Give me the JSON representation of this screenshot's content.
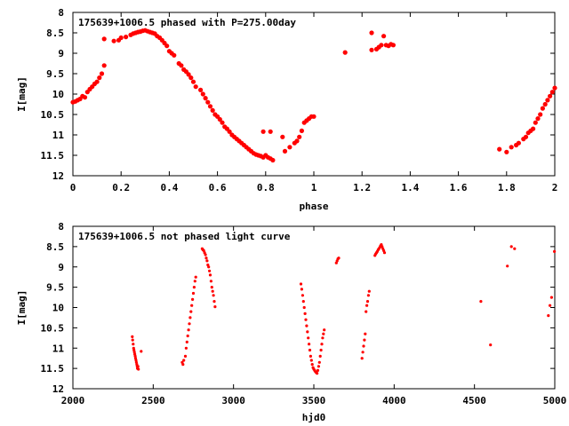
{
  "chart_data": [
    {
      "type": "scatter",
      "title": "175639+1006.5 phased with P=275.00day",
      "xlabel": "phase",
      "ylabel": "I[mag]",
      "xlim": [
        0,
        2
      ],
      "ylim": [
        12,
        8
      ],
      "y_inverted": true,
      "grid": false,
      "color": "#ff0000",
      "xticks": [
        "0",
        "0.2",
        "0.4",
        "0.6",
        "0.8",
        "1",
        "1.2",
        "1.4",
        "1.6",
        "1.8",
        "2"
      ],
      "yticks": [
        "8",
        "8.5",
        "9",
        "9.5",
        "10",
        "10.5",
        "11",
        "11.5",
        "12"
      ],
      "series": [
        {
          "points": [
            [
              0.0,
              10.2
            ],
            [
              0.01,
              10.18
            ],
            [
              0.02,
              10.15
            ],
            [
              0.03,
              10.12
            ],
            [
              0.04,
              10.05
            ],
            [
              0.05,
              10.08
            ],
            [
              0.06,
              9.95
            ],
            [
              0.07,
              9.88
            ],
            [
              0.08,
              9.82
            ],
            [
              0.09,
              9.75
            ],
            [
              0.1,
              9.7
            ],
            [
              0.11,
              9.6
            ],
            [
              0.12,
              9.5
            ],
            [
              0.13,
              9.3
            ],
            [
              0.13,
              8.65
            ],
            [
              0.17,
              8.7
            ],
            [
              0.19,
              8.68
            ],
            [
              0.2,
              8.62
            ],
            [
              0.22,
              8.6
            ],
            [
              0.24,
              8.55
            ],
            [
              0.25,
              8.52
            ],
            [
              0.26,
              8.5
            ],
            [
              0.27,
              8.48
            ],
            [
              0.28,
              8.47
            ],
            [
              0.29,
              8.45
            ],
            [
              0.3,
              8.44
            ],
            [
              0.31,
              8.46
            ],
            [
              0.32,
              8.48
            ],
            [
              0.33,
              8.5
            ],
            [
              0.34,
              8.52
            ],
            [
              0.35,
              8.58
            ],
            [
              0.36,
              8.62
            ],
            [
              0.37,
              8.68
            ],
            [
              0.38,
              8.75
            ],
            [
              0.39,
              8.82
            ],
            [
              0.4,
              8.95
            ],
            [
              0.41,
              9.0
            ],
            [
              0.42,
              9.05
            ],
            [
              0.44,
              9.25
            ],
            [
              0.45,
              9.3
            ],
            [
              0.46,
              9.4
            ],
            [
              0.47,
              9.45
            ],
            [
              0.48,
              9.52
            ],
            [
              0.49,
              9.6
            ],
            [
              0.5,
              9.7
            ],
            [
              0.51,
              9.82
            ],
            [
              0.53,
              9.9
            ],
            [
              0.54,
              10.0
            ],
            [
              0.55,
              10.1
            ],
            [
              0.56,
              10.2
            ],
            [
              0.57,
              10.3
            ],
            [
              0.58,
              10.4
            ],
            [
              0.59,
              10.5
            ],
            [
              0.6,
              10.55
            ],
            [
              0.61,
              10.62
            ],
            [
              0.62,
              10.7
            ],
            [
              0.63,
              10.8
            ],
            [
              0.64,
              10.85
            ],
            [
              0.65,
              10.92
            ],
            [
              0.66,
              11.0
            ],
            [
              0.67,
              11.05
            ],
            [
              0.68,
              11.1
            ],
            [
              0.69,
              11.15
            ],
            [
              0.7,
              11.2
            ],
            [
              0.71,
              11.25
            ],
            [
              0.72,
              11.3
            ],
            [
              0.73,
              11.35
            ],
            [
              0.74,
              11.4
            ],
            [
              0.75,
              11.45
            ],
            [
              0.76,
              11.48
            ],
            [
              0.77,
              11.5
            ],
            [
              0.78,
              11.52
            ],
            [
              0.79,
              11.55
            ],
            [
              0.8,
              11.5
            ],
            [
              0.81,
              11.55
            ],
            [
              0.82,
              11.58
            ],
            [
              0.83,
              11.62
            ],
            [
              0.79,
              10.92
            ],
            [
              0.82,
              10.92
            ],
            [
              0.87,
              11.05
            ],
            [
              0.88,
              11.4
            ],
            [
              0.9,
              11.3
            ],
            [
              0.92,
              11.2
            ],
            [
              0.93,
              11.15
            ],
            [
              0.94,
              11.05
            ],
            [
              0.95,
              10.9
            ],
            [
              0.96,
              10.7
            ],
            [
              0.97,
              10.65
            ],
            [
              0.98,
              10.6
            ],
            [
              0.99,
              10.55
            ],
            [
              1.0,
              10.55
            ],
            [
              1.13,
              8.98
            ],
            [
              1.24,
              8.5
            ],
            [
              1.24,
              8.92
            ],
            [
              1.26,
              8.9
            ],
            [
              1.27,
              8.85
            ],
            [
              1.28,
              8.8
            ],
            [
              1.29,
              8.58
            ],
            [
              1.3,
              8.8
            ],
            [
              1.31,
              8.82
            ],
            [
              1.32,
              8.78
            ],
            [
              1.33,
              8.8
            ],
            [
              1.77,
              11.35
            ],
            [
              1.8,
              11.42
            ],
            [
              1.82,
              11.3
            ],
            [
              1.84,
              11.25
            ],
            [
              1.85,
              11.2
            ],
            [
              1.87,
              11.1
            ],
            [
              1.88,
              11.05
            ],
            [
              1.89,
              10.95
            ],
            [
              1.9,
              10.9
            ],
            [
              1.91,
              10.85
            ],
            [
              1.92,
              10.7
            ],
            [
              1.93,
              10.6
            ],
            [
              1.94,
              10.5
            ],
            [
              1.95,
              10.35
            ],
            [
              1.96,
              10.25
            ],
            [
              1.97,
              10.15
            ],
            [
              1.98,
              10.05
            ],
            [
              1.99,
              9.95
            ],
            [
              2.0,
              9.85
            ]
          ]
        }
      ]
    },
    {
      "type": "scatter",
      "title": "175639+1006.5 not phased light curve",
      "xlabel": "hjd0",
      "ylabel": "I[mag]",
      "xlim": [
        2000,
        5000
      ],
      "ylim": [
        12,
        8
      ],
      "y_inverted": true,
      "grid": false,
      "color": "#ff0000",
      "xticks": [
        "2000",
        "2500",
        "3000",
        "3500",
        "4000",
        "4500",
        "5000"
      ],
      "yticks": [
        "8",
        "8.5",
        "9",
        "9.5",
        "10",
        "10.5",
        "11",
        "11.5",
        "12"
      ],
      "series": [
        {
          "points": [
            [
              2370,
              10.72
            ],
            [
              2372,
              10.8
            ],
            [
              2375,
              10.9
            ],
            [
              2378,
              11.0
            ],
            [
              2380,
              11.05
            ],
            [
              2383,
              11.1
            ],
            [
              2385,
              11.15
            ],
            [
              2388,
              11.2
            ],
            [
              2390,
              11.25
            ],
            [
              2393,
              11.3
            ],
            [
              2395,
              11.35
            ],
            [
              2398,
              11.4
            ],
            [
              2400,
              11.45
            ],
            [
              2402,
              11.5
            ],
            [
              2405,
              11.45
            ],
            [
              2408,
              11.52
            ],
            [
              2425,
              11.08
            ],
            [
              2680,
              11.35
            ],
            [
              2685,
              11.4
            ],
            [
              2690,
              11.3
            ],
            [
              2700,
              11.2
            ],
            [
              2705,
              11.0
            ],
            [
              2710,
              10.85
            ],
            [
              2715,
              10.7
            ],
            [
              2720,
              10.55
            ],
            [
              2725,
              10.4
            ],
            [
              2730,
              10.25
            ],
            [
              2735,
              10.1
            ],
            [
              2740,
              9.95
            ],
            [
              2745,
              9.8
            ],
            [
              2750,
              9.65
            ],
            [
              2755,
              9.5
            ],
            [
              2760,
              9.35
            ],
            [
              2765,
              9.25
            ],
            [
              2805,
              8.55
            ],
            [
              2810,
              8.58
            ],
            [
              2815,
              8.6
            ],
            [
              2820,
              8.65
            ],
            [
              2825,
              8.7
            ],
            [
              2830,
              8.78
            ],
            [
              2835,
              8.85
            ],
            [
              2840,
              8.95
            ],
            [
              2845,
              9.0
            ],
            [
              2850,
              9.1
            ],
            [
              2855,
              9.2
            ],
            [
              2860,
              9.35
            ],
            [
              2865,
              9.5
            ],
            [
              2870,
              9.6
            ],
            [
              2875,
              9.7
            ],
            [
              2880,
              9.85
            ],
            [
              2885,
              9.98
            ],
            [
              3420,
              9.42
            ],
            [
              3425,
              9.55
            ],
            [
              3430,
              9.7
            ],
            [
              3435,
              9.85
            ],
            [
              3440,
              10.0
            ],
            [
              3445,
              10.15
            ],
            [
              3450,
              10.3
            ],
            [
              3455,
              10.45
            ],
            [
              3460,
              10.6
            ],
            [
              3465,
              10.75
            ],
            [
              3470,
              10.9
            ],
            [
              3475,
              11.05
            ],
            [
              3480,
              11.2
            ],
            [
              3485,
              11.3
            ],
            [
              3490,
              11.4
            ],
            [
              3495,
              11.48
            ],
            [
              3500,
              11.52
            ],
            [
              3505,
              11.55
            ],
            [
              3510,
              11.58
            ],
            [
              3515,
              11.6
            ],
            [
              3520,
              11.62
            ],
            [
              3525,
              11.55
            ],
            [
              3530,
              11.45
            ],
            [
              3535,
              11.35
            ],
            [
              3540,
              11.2
            ],
            [
              3545,
              11.05
            ],
            [
              3550,
              10.9
            ],
            [
              3555,
              10.75
            ],
            [
              3560,
              10.65
            ],
            [
              3565,
              10.55
            ],
            [
              3640,
              8.9
            ],
            [
              3645,
              8.85
            ],
            [
              3650,
              8.8
            ],
            [
              3655,
              8.78
            ],
            [
              3800,
              11.25
            ],
            [
              3805,
              11.1
            ],
            [
              3810,
              10.95
            ],
            [
              3815,
              10.8
            ],
            [
              3820,
              10.65
            ],
            [
              3825,
              10.1
            ],
            [
              3830,
              9.95
            ],
            [
              3835,
              9.85
            ],
            [
              3840,
              9.7
            ],
            [
              3845,
              9.6
            ],
            [
              3880,
              8.72
            ],
            [
              3885,
              8.68
            ],
            [
              3890,
              8.65
            ],
            [
              3895,
              8.62
            ],
            [
              3900,
              8.58
            ],
            [
              3905,
              8.55
            ],
            [
              3910,
              8.52
            ],
            [
              3915,
              8.48
            ],
            [
              3920,
              8.45
            ],
            [
              3925,
              8.5
            ],
            [
              3930,
              8.55
            ],
            [
              3935,
              8.6
            ],
            [
              3940,
              8.65
            ],
            [
              4540,
              9.85
            ],
            [
              4600,
              10.92
            ],
            [
              4705,
              8.98
            ],
            [
              4730,
              8.5
            ],
            [
              4750,
              8.55
            ],
            [
              4960,
              10.2
            ],
            [
              4970,
              9.95
            ],
            [
              4980,
              9.75
            ],
            [
              4998,
              8.62
            ]
          ]
        }
      ]
    }
  ]
}
